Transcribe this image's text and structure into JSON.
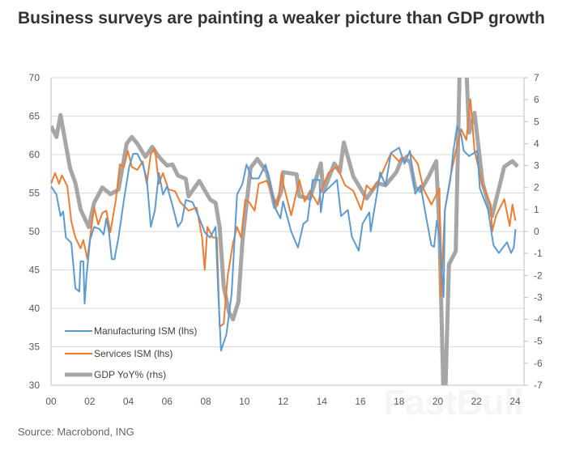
{
  "chart_data": {
    "type": "line",
    "title": "Business surveys are painting a weaker picture than GDP growth",
    "source": "Source: Macrobond, ING",
    "watermark": "FastBull",
    "xlim": [
      2000,
      2024.3
    ],
    "x_ticks": [
      "00",
      "02",
      "04",
      "06",
      "08",
      "10",
      "12",
      "14",
      "16",
      "18",
      "20",
      "22",
      "24"
    ],
    "y_left": {
      "range": [
        30,
        70
      ],
      "ticks": [
        "70",
        "65",
        "60",
        "55",
        "50",
        "45",
        "40",
        "35",
        "30"
      ]
    },
    "y_right": {
      "range": [
        -7,
        7
      ],
      "ticks": [
        "7",
        "6",
        "5",
        "4",
        "3",
        "2",
        "1",
        "0",
        "-1",
        "-2",
        "-3",
        "-4",
        "-5",
        "-6",
        "-7"
      ]
    },
    "grid": "horizontal",
    "legend": "bottom-left",
    "series": [
      {
        "name": "Manufacturing ISM (lhs)",
        "axis": "left",
        "color": "#5B9BD5",
        "points": [
          [
            2000,
            55.9
          ],
          [
            2000.28,
            54.8
          ],
          [
            2000.49,
            52
          ],
          [
            2000.63,
            52.6
          ],
          [
            2000.77,
            49.2
          ],
          [
            2001.05,
            48.5
          ],
          [
            2001.26,
            42.6
          ],
          [
            2001.46,
            42.2
          ],
          [
            2001.53,
            46.1
          ],
          [
            2001.67,
            46.1
          ],
          [
            2001.74,
            40.6
          ],
          [
            2001.84,
            44.3
          ],
          [
            2002.02,
            48.9
          ],
          [
            2002.23,
            50.6
          ],
          [
            2002.51,
            50.3
          ],
          [
            2002.72,
            49.6
          ],
          [
            2002.86,
            51.7
          ],
          [
            2003.0,
            49.9
          ],
          [
            2003.14,
            46.4
          ],
          [
            2003.28,
            46.4
          ],
          [
            2003.49,
            49.2
          ],
          [
            2003.77,
            54.1
          ],
          [
            2004.04,
            58.4
          ],
          [
            2004.25,
            60.1
          ],
          [
            2004.46,
            60.1
          ],
          [
            2004.74,
            58.7
          ],
          [
            2004.95,
            56.9
          ],
          [
            2005.16,
            50.6
          ],
          [
            2005.37,
            52.7
          ],
          [
            2005.58,
            57.6
          ],
          [
            2005.79,
            54.8
          ],
          [
            2006.0,
            55.9
          ],
          [
            2006.28,
            53.4
          ],
          [
            2006.56,
            50.6
          ],
          [
            2006.76,
            51.3
          ],
          [
            2006.97,
            54.1
          ],
          [
            2007.32,
            53.8
          ],
          [
            2007.67,
            51.7
          ],
          [
            2007.95,
            49.9
          ],
          [
            2008.23,
            49.2
          ],
          [
            2008.51,
            50.6
          ],
          [
            2008.65,
            41.9
          ],
          [
            2008.79,
            34.5
          ],
          [
            2009.07,
            36.6
          ],
          [
            2009.34,
            41.9
          ],
          [
            2009.62,
            54.8
          ],
          [
            2009.9,
            56.2
          ],
          [
            2010.11,
            58.7
          ],
          [
            2010.39,
            56.9
          ],
          [
            2010.74,
            56.9
          ],
          [
            2011.09,
            58.7
          ],
          [
            2011.3,
            56.6
          ],
          [
            2011.58,
            53.1
          ],
          [
            2011.86,
            51.7
          ],
          [
            2012.0,
            53.9
          ],
          [
            2012.42,
            50
          ],
          [
            2012.77,
            47.9
          ],
          [
            2013.05,
            51
          ],
          [
            2013.26,
            51.4
          ],
          [
            2013.53,
            56.7
          ],
          [
            2013.88,
            56.7
          ],
          [
            2013.95,
            52.5
          ],
          [
            2014.09,
            55
          ],
          [
            2014.79,
            56.7
          ],
          [
            2015.0,
            52
          ],
          [
            2015.35,
            52.8
          ],
          [
            2015.56,
            49.3
          ],
          [
            2015.91,
            47.5
          ],
          [
            2016.11,
            51
          ],
          [
            2016.46,
            52.5
          ],
          [
            2016.53,
            50
          ],
          [
            2016.88,
            55.3
          ],
          [
            2017.02,
            57.7
          ],
          [
            2017.3,
            56
          ],
          [
            2017.58,
            60.2
          ],
          [
            2018.0,
            60.9
          ],
          [
            2018.28,
            58.8
          ],
          [
            2018.56,
            60.5
          ],
          [
            2018.83,
            54.9
          ],
          [
            2019.11,
            56
          ],
          [
            2019.39,
            52
          ],
          [
            2019.67,
            48.2
          ],
          [
            2019.81,
            48
          ],
          [
            2019.95,
            51.4
          ],
          [
            2020.09,
            49.3
          ],
          [
            2020.3,
            41.5
          ],
          [
            2020.37,
            52.8
          ],
          [
            2020.65,
            56.7
          ],
          [
            2020.79,
            60.2
          ],
          [
            2021.0,
            63.7
          ],
          [
            2021.21,
            62.6
          ],
          [
            2021.34,
            60.5
          ],
          [
            2021.62,
            59.8
          ],
          [
            2022.04,
            60.5
          ],
          [
            2022.18,
            55.6
          ],
          [
            2022.6,
            52.8
          ],
          [
            2022.88,
            48.2
          ],
          [
            2023.16,
            47.2
          ],
          [
            2023.58,
            48.6
          ],
          [
            2023.79,
            47.2
          ],
          [
            2023.93,
            47.9
          ],
          [
            2024.02,
            50.3
          ]
        ]
      },
      {
        "name": "Services ISM (lhs)",
        "axis": "left",
        "color": "#ED7D31",
        "points": [
          [
            2000,
            56.2
          ],
          [
            2000.21,
            57.6
          ],
          [
            2000.42,
            56.2
          ],
          [
            2000.56,
            57.3
          ],
          [
            2000.84,
            55.9
          ],
          [
            2001.05,
            51.3
          ],
          [
            2001.26,
            49.2
          ],
          [
            2001.53,
            47.8
          ],
          [
            2001.67,
            48.9
          ],
          [
            2001.88,
            46.4
          ],
          [
            2002.02,
            49.2
          ],
          [
            2002.23,
            53.1
          ],
          [
            2002.44,
            50.9
          ],
          [
            2002.65,
            52.4
          ],
          [
            2002.86,
            52.7
          ],
          [
            2003.07,
            49.9
          ],
          [
            2003.35,
            54.1
          ],
          [
            2003.56,
            58.7
          ],
          [
            2003.77,
            58.4
          ],
          [
            2003.97,
            60.5
          ],
          [
            2004.18,
            58.4
          ],
          [
            2004.46,
            58
          ],
          [
            2004.74,
            59.1
          ],
          [
            2004.95,
            56.2
          ],
          [
            2005.16,
            60.1
          ],
          [
            2005.37,
            60.8
          ],
          [
            2005.58,
            56.2
          ],
          [
            2005.79,
            57.6
          ],
          [
            2006.07,
            55.5
          ],
          [
            2006.42,
            55.2
          ],
          [
            2006.69,
            53.8
          ],
          [
            2007.11,
            52.7
          ],
          [
            2007.53,
            53.1
          ],
          [
            2007.81,
            49.2
          ],
          [
            2007.95,
            45
          ],
          [
            2008.09,
            50.6
          ],
          [
            2008.37,
            49.2
          ],
          [
            2008.58,
            49.2
          ],
          [
            2008.72,
            37.6
          ],
          [
            2008.93,
            38
          ],
          [
            2009.14,
            44.3
          ],
          [
            2009.41,
            48.5
          ],
          [
            2009.62,
            50.6
          ],
          [
            2009.83,
            49.2
          ],
          [
            2010.04,
            54.1
          ],
          [
            2010.25,
            53.8
          ],
          [
            2010.53,
            52.7
          ],
          [
            2010.74,
            56.2
          ],
          [
            2011.16,
            56.6
          ],
          [
            2011.44,
            54.8
          ],
          [
            2011.72,
            53.4
          ],
          [
            2011.92,
            57.6
          ],
          [
            2012.0,
            56.3
          ],
          [
            2012.42,
            52.1
          ],
          [
            2012.84,
            56.7
          ],
          [
            2013.12,
            53.9
          ],
          [
            2013.39,
            55.3
          ],
          [
            2013.81,
            53.5
          ],
          [
            2013.95,
            55.3
          ],
          [
            2014.37,
            57.7
          ],
          [
            2014.79,
            58.4
          ],
          [
            2015.21,
            56
          ],
          [
            2015.63,
            55.3
          ],
          [
            2016.04,
            52.8
          ],
          [
            2016.32,
            56
          ],
          [
            2016.6,
            55.3
          ],
          [
            2017.02,
            57
          ],
          [
            2017.58,
            60.2
          ],
          [
            2018.0,
            59.1
          ],
          [
            2018.56,
            60.2
          ],
          [
            2018.97,
            58.8
          ],
          [
            2019.25,
            55.6
          ],
          [
            2019.67,
            53.5
          ],
          [
            2020.09,
            55.6
          ],
          [
            2020.16,
            41.6
          ],
          [
            2020.37,
            52.8
          ],
          [
            2020.65,
            57
          ],
          [
            2020.93,
            60.5
          ],
          [
            2021.21,
            63.3
          ],
          [
            2021.48,
            61.9
          ],
          [
            2021.69,
            67.2
          ],
          [
            2021.9,
            60.5
          ],
          [
            2022.32,
            56
          ],
          [
            2022.74,
            53.5
          ],
          [
            2022.81,
            50
          ],
          [
            2023.02,
            52.1
          ],
          [
            2023.44,
            54.2
          ],
          [
            2023.72,
            50.7
          ],
          [
            2023.86,
            53.5
          ],
          [
            2024.02,
            51.4
          ]
        ]
      },
      {
        "name": "GDP YoY% (rhs)",
        "axis": "right",
        "color": "#A6A6A6",
        "points": [
          [
            2000,
            4.8
          ],
          [
            2000.28,
            4.3
          ],
          [
            2000.49,
            5.3
          ],
          [
            2000.98,
            2.9
          ],
          [
            2001.26,
            2.2
          ],
          [
            2001.53,
            1.0
          ],
          [
            2001.95,
            0.2
          ],
          [
            2002.23,
            1.3
          ],
          [
            2002.65,
            2.0
          ],
          [
            2003.07,
            1.7
          ],
          [
            2003.49,
            1.9
          ],
          [
            2003.91,
            4.0
          ],
          [
            2004.18,
            4.3
          ],
          [
            2004.46,
            4.0
          ],
          [
            2004.88,
            3.4
          ],
          [
            2005.23,
            3.85
          ],
          [
            2005.58,
            3.4
          ],
          [
            2006.0,
            3.0
          ],
          [
            2006.28,
            3.05
          ],
          [
            2006.56,
            2.55
          ],
          [
            2006.97,
            2.4
          ],
          [
            2007.11,
            1.6
          ],
          [
            2007.67,
            2.3
          ],
          [
            2008.23,
            1.45
          ],
          [
            2008.51,
            1.3
          ],
          [
            2008.72,
            0.2
          ],
          [
            2008.93,
            -2.5
          ],
          [
            2009.21,
            -3.7
          ],
          [
            2009.41,
            -4.0
          ],
          [
            2009.69,
            -3.2
          ],
          [
            2009.9,
            -0.4
          ],
          [
            2010.32,
            2.9
          ],
          [
            2010.67,
            3.3
          ],
          [
            2011.16,
            2.7
          ],
          [
            2011.58,
            1.1
          ],
          [
            2011.9,
            1.8
          ],
          [
            2012.0,
            2.7
          ],
          [
            2012.7,
            2.6
          ],
          [
            2012.84,
            1.6
          ],
          [
            2013.39,
            1.5
          ],
          [
            2013.95,
            3.1
          ],
          [
            2014.09,
            1.8
          ],
          [
            2014.65,
            3.1
          ],
          [
            2014.93,
            2.7
          ],
          [
            2015.14,
            4.05
          ],
          [
            2015.63,
            2.5
          ],
          [
            2016.32,
            1.5
          ],
          [
            2016.88,
            2.2
          ],
          [
            2017.3,
            2.1
          ],
          [
            2017.86,
            2.7
          ],
          [
            2018.14,
            3.3
          ],
          [
            2018.56,
            3.2
          ],
          [
            2018.83,
            2.0
          ],
          [
            2019.11,
            1.85
          ],
          [
            2019.53,
            2.5
          ],
          [
            2019.92,
            3.2
          ],
          [
            2020.09,
            0
          ],
          [
            2020.34,
            -9.1
          ],
          [
            2020.58,
            -1.5
          ],
          [
            2020.93,
            -0.9
          ],
          [
            2021.25,
            12.2
          ],
          [
            2021.62,
            4.5
          ],
          [
            2021.9,
            5.4
          ],
          [
            2022.32,
            2.2
          ],
          [
            2022.81,
            0.7
          ],
          [
            2023.44,
            2.95
          ],
          [
            2023.86,
            3.2
          ],
          [
            2024.13,
            2.95
          ]
        ]
      }
    ]
  }
}
